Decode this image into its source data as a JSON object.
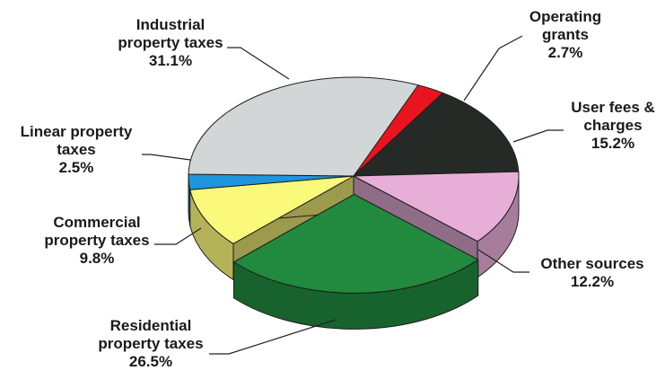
{
  "chart_data": {
    "type": "pie",
    "title": "",
    "slices": [
      {
        "label_lines": [
          "Operating",
          "grants"
        ],
        "value_text": "2.7%",
        "value": 2.7,
        "color": "#e8141e"
      },
      {
        "label_lines": [
          "User fees &",
          "charges"
        ],
        "value_text": "15.2%",
        "value": 15.2,
        "color": "#262a27"
      },
      {
        "label_lines": [
          "Other sources"
        ],
        "value_text": "12.2%",
        "value": 12.2,
        "color": "#e7afd8"
      },
      {
        "label_lines": [
          "Residential",
          "property taxes"
        ],
        "value_text": "26.5%",
        "value": 26.5,
        "color": "#218a3e"
      },
      {
        "label_lines": [
          "Commercial",
          "property taxes"
        ],
        "value_text": "9.8%",
        "value": 9.8,
        "color": "#fbf97a"
      },
      {
        "label_lines": [
          "Linear property",
          "taxes"
        ],
        "value_text": "2.5%",
        "value": 2.5,
        "color": "#1f95dc"
      },
      {
        "label_lines": [
          "Industrial",
          "property taxes"
        ],
        "value_text": "31.1%",
        "value": 31.1,
        "color": "#d2d6d6"
      }
    ],
    "exploded_slice": "Residential",
    "style": "3d",
    "legend": "none"
  }
}
